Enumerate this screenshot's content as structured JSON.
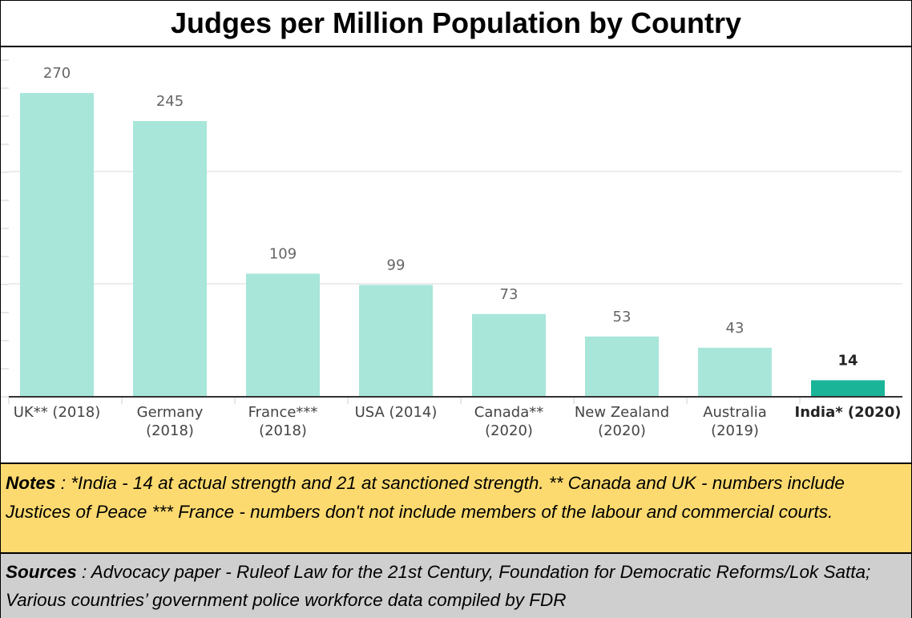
{
  "title": "Judges per Million Population by Country",
  "chart_data": {
    "type": "bar",
    "title": "Judges per Million Population by Country",
    "categories": [
      [
        "UK** (2018)"
      ],
      [
        "Germany",
        "(2018)"
      ],
      [
        "France***",
        "(2018)"
      ],
      [
        "USA (2014)"
      ],
      [
        "Canada**",
        "(2020)"
      ],
      [
        "New Zealand",
        "(2020)"
      ],
      [
        "Australia",
        "(2019)"
      ],
      [
        "India* (2020)"
      ]
    ],
    "values": [
      270,
      245,
      109,
      99,
      73,
      53,
      43,
      14
    ],
    "value_labels": [
      "270",
      "245",
      "109",
      "99",
      "73",
      "53",
      "43",
      "14"
    ],
    "highlight_index": 7,
    "ylim": [
      0,
      300
    ],
    "gridlines": [
      100,
      200
    ],
    "xlabel": "",
    "ylabel": "",
    "colors": {
      "bar": "#a8e6da",
      "highlight": "#1ab599",
      "grid": "#e6e6e6",
      "label": "#666666",
      "category": "#444444",
      "category_highlight": "#222222"
    }
  },
  "notes": {
    "label": "Notes",
    "text": " : *India - 14 at actual strength and 21 at sanctioned strength. ** Canada and UK - numbers include Justices of Peace *** France - numbers don't not include members of the labour and commercial courts."
  },
  "sources": {
    "label": "Sources",
    "text": " : Advocacy paper - Ruleof Law for the 21st Century, Foundation for Democratic Reforms/Lok Satta;  Various countries’ government police workforce data compiled by FDR"
  }
}
